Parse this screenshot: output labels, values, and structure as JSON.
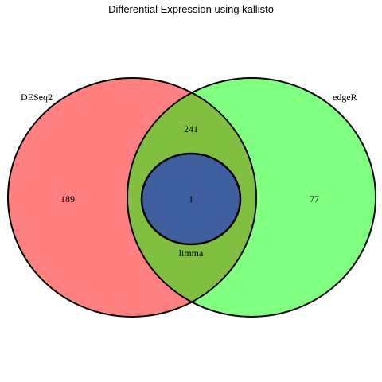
{
  "title": "Differential Expression using kallisto",
  "sets": {
    "deseq2": {
      "label": "DESeq2",
      "color": "#ff8080"
    },
    "edger": {
      "label": "edgeR",
      "color": "#80ff80"
    },
    "limma": {
      "label": "limma",
      "color": "#3f5f9f"
    }
  },
  "overlap_color": "#80bf40",
  "counts": {
    "deseq2_only": "189",
    "edger_only": "77",
    "deseq2_edger": "241",
    "all_three": "1"
  }
}
